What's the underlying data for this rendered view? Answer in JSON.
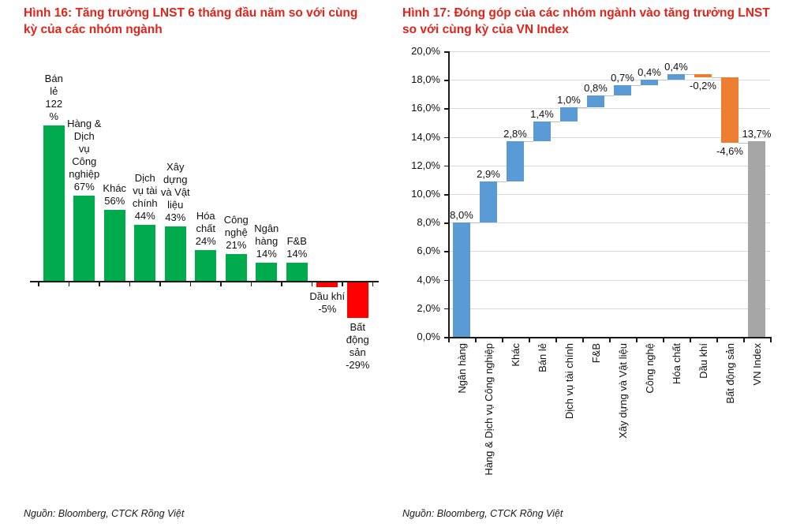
{
  "brand": {
    "title_color": "#E2231A",
    "axis_color": "#1A1A1A",
    "connector_color": "#BFBFBF"
  },
  "chart_data": [
    {
      "type": "bar",
      "title": "Hình 16: Tăng trưởng LNST 6 tháng đầu năm so với cùng kỳ của các nhóm ngành",
      "title_lines": [
        "Hình 16: Tăng trưởng LNST 6 tháng đầu năm so với cùng",
        "kỳ của các nhóm ngành"
      ],
      "source": "Nguồn: Bloomberg, CTCK Rồng Việt",
      "categories": [
        "Bán lẻ",
        "Hàng & Dịch vụ Công nghiệp",
        "Khác",
        "Dịch vụ tài chính",
        "Xây dựng và Vật liệu",
        "Hóa chất",
        "Công nghệ",
        "Ngân hàng",
        "F&B",
        "Dầu khí",
        "Bất động sản"
      ],
      "values": [
        122,
        67,
        56,
        44,
        43,
        24,
        21,
        14,
        14,
        -5,
        -29
      ],
      "bar_label_lines": [
        [
          "Bán",
          "lẻ",
          "122",
          "%"
        ],
        [
          "Hàng &",
          "Dịch",
          "vụ",
          "Công",
          "nghiệp",
          "67%"
        ],
        [
          "Khác",
          "56%"
        ],
        [
          "Dịch",
          "vụ tài",
          "chính",
          "44%"
        ],
        [
          "Xây",
          "dựng",
          "và Vật",
          "liệu",
          "43%"
        ],
        [
          "Hóa",
          "chất",
          "24%"
        ],
        [
          "Công",
          "nghệ",
          "21%"
        ],
        [
          "Ngân",
          "hàng",
          "14%"
        ],
        [
          "F&B",
          "14%"
        ],
        [
          "Dầu khí",
          "-5%"
        ],
        [
          "Bất",
          "động",
          "sản",
          "-29%"
        ]
      ],
      "positive_color": "#00AB4E",
      "negative_color": "#FF0000",
      "ylim": [
        -29,
        122
      ],
      "grid": false,
      "legend": "none"
    },
    {
      "type": "waterfall",
      "title": "Hình 17: Đóng góp của các nhóm ngành vào tăng trưởng LNST so với cùng kỳ của VN Index",
      "title_lines": [
        "Hình 17: Đóng góp của các nhóm ngành vào tăng trưởng LNST",
        "so với cùng kỳ của VN Index"
      ],
      "source": "Nguồn: Bloomberg, CTCK Rồng Việt",
      "categories": [
        "Ngân hàng",
        "Hàng & Dịch vụ Công nghiệp",
        "Khác",
        "Bán lẻ",
        "Dịch vụ tài chính",
        "F&B",
        "Xây dựng và Vật liệu",
        "Công nghệ",
        "Hóa chất",
        "Dầu khí",
        "Bất động sản",
        "VN Index"
      ],
      "values": [
        8.0,
        2.9,
        2.8,
        1.4,
        1.0,
        0.8,
        0.7,
        0.4,
        0.4,
        -0.2,
        -4.6,
        13.7
      ],
      "value_labels": [
        "8,0%",
        "2,9%",
        "2,8%",
        "1,4%",
        "1,0%",
        "0,8%",
        "0,7%",
        "0,4%",
        "0,4%",
        "-0,2%",
        "-4,6%",
        "13,7%"
      ],
      "bar_types": [
        "delta",
        "delta",
        "delta",
        "delta",
        "delta",
        "delta",
        "delta",
        "delta",
        "delta",
        "delta",
        "delta",
        "total"
      ],
      "increase_color": "#5B9BD5",
      "decrease_color": "#ED7D31",
      "total_color": "#A6A6A6",
      "y_ticks": [
        "0,0%",
        "2,0%",
        "4,0%",
        "6,0%",
        "8,0%",
        "10,0%",
        "12,0%",
        "14,0%",
        "16,0%",
        "18,0%",
        "20,0%"
      ],
      "ylim": [
        0,
        20
      ],
      "grid": true,
      "gridline_color": "#D9D9D9",
      "legend": "none"
    }
  ]
}
